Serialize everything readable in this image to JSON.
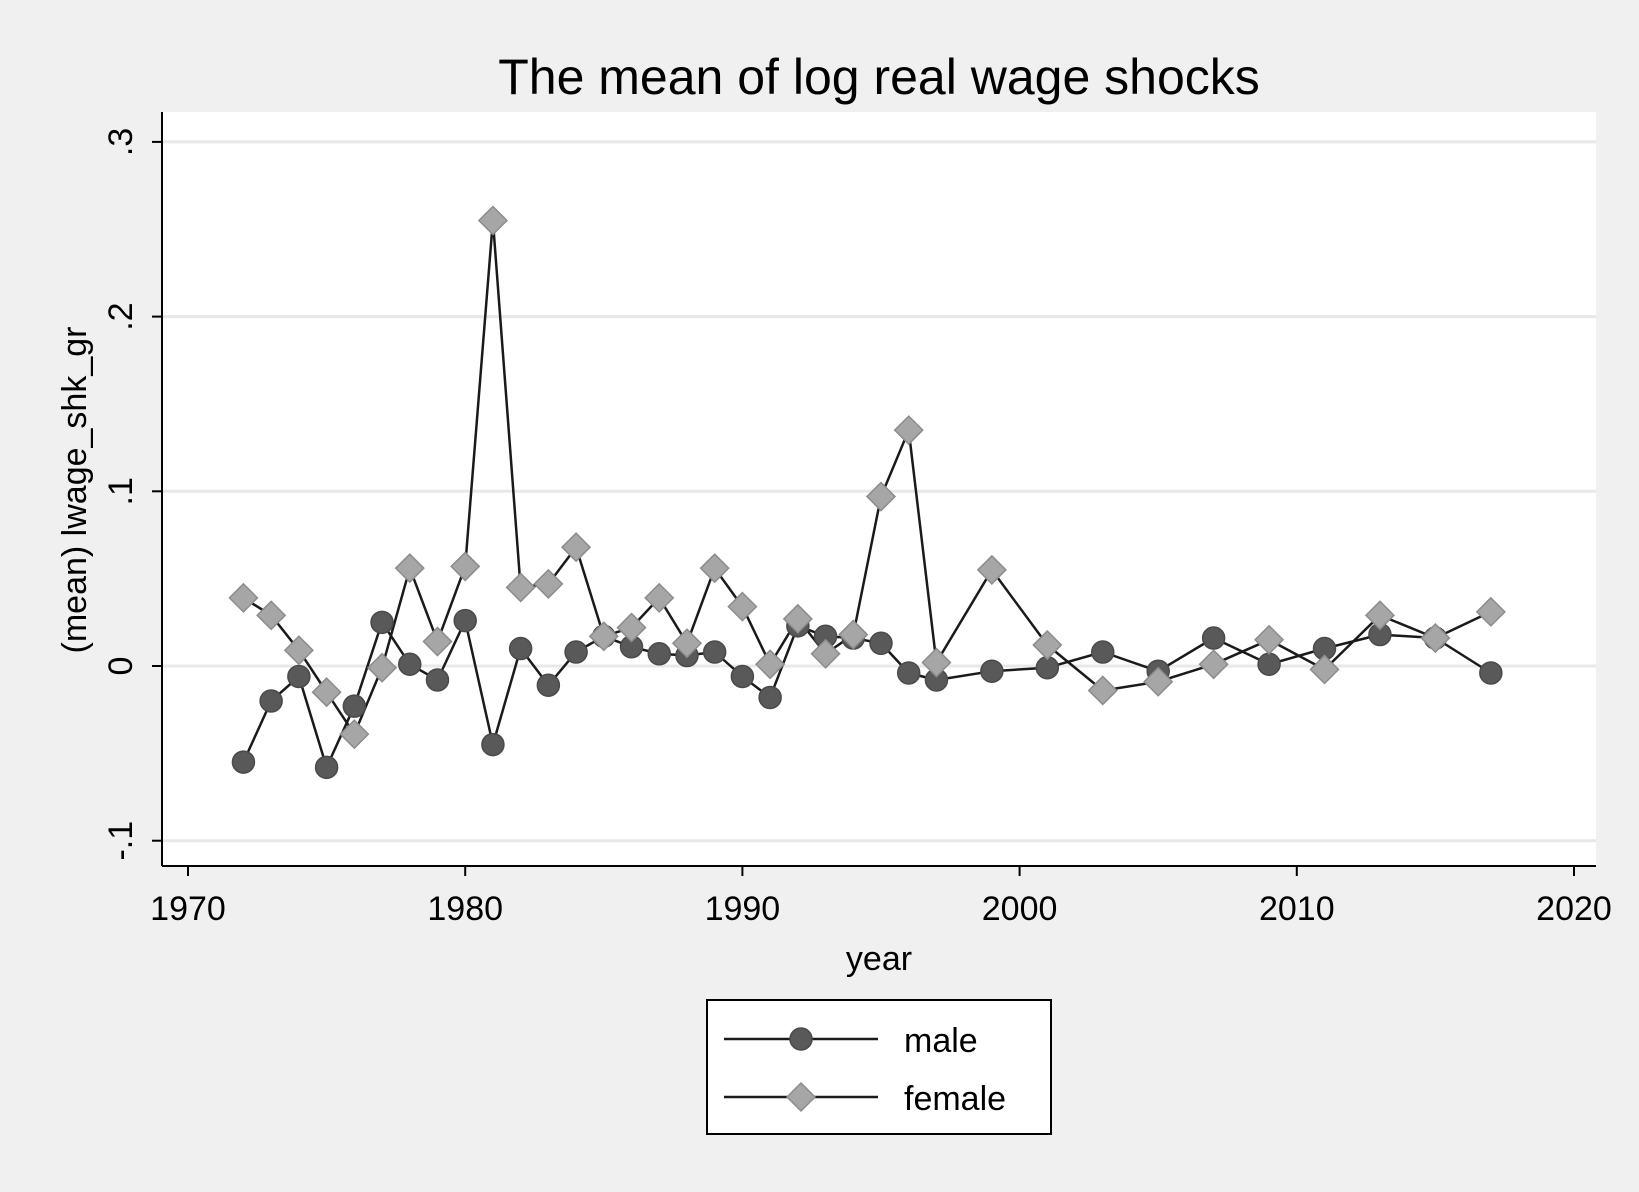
{
  "chart_data": {
    "type": "line",
    "title": "The mean of log real wage shocks",
    "xlabel": "year",
    "ylabel": "(mean) lwage_shk_gr",
    "xlim": [
      1970,
      2020
    ],
    "ylim": [
      -0.1,
      0.3
    ],
    "x_ticks": [
      1970,
      1980,
      1990,
      2000,
      2010,
      2020
    ],
    "x_tick_labels": [
      "1970",
      "1980",
      "1990",
      "2000",
      "2010",
      "2020"
    ],
    "y_ticks": [
      -0.1,
      0,
      0.1,
      0.2,
      0.3
    ],
    "y_tick_labels": [
      "-.1",
      "0",
      ".1",
      ".2",
      ".3"
    ],
    "grid": true,
    "legend_position": "bottom",
    "series": [
      {
        "name": "male",
        "marker": "circle",
        "color": "#595959",
        "x": [
          1972,
          1973,
          1974,
          1975,
          1976,
          1977,
          1978,
          1979,
          1980,
          1981,
          1982,
          1983,
          1984,
          1985,
          1986,
          1987,
          1988,
          1989,
          1990,
          1991,
          1992,
          1993,
          1994,
          1995,
          1996,
          1997,
          1999,
          2001,
          2003,
          2005,
          2007,
          2009,
          2011,
          2013,
          2015,
          2017
        ],
        "y": [
          -0.055,
          -0.02,
          -0.006,
          -0.058,
          -0.023,
          0.025,
          0.001,
          -0.008,
          0.026,
          -0.045,
          0.01,
          -0.011,
          0.008,
          0.017,
          0.011,
          0.007,
          0.006,
          0.008,
          -0.006,
          -0.018,
          0.023,
          0.017,
          0.016,
          0.013,
          -0.004,
          -0.008,
          -0.003,
          -0.001,
          0.008,
          -0.003,
          0.016,
          0.001,
          0.01,
          0.018,
          0.016,
          -0.004
        ]
      },
      {
        "name": "female",
        "marker": "diamond",
        "color": "#a6a6a6",
        "x": [
          1972,
          1973,
          1974,
          1975,
          1976,
          1977,
          1978,
          1979,
          1980,
          1981,
          1982,
          1983,
          1984,
          1985,
          1986,
          1987,
          1988,
          1989,
          1990,
          1991,
          1992,
          1993,
          1994,
          1995,
          1996,
          1997,
          1999,
          2001,
          2003,
          2005,
          2007,
          2009,
          2011,
          2013,
          2015,
          2017
        ],
        "y": [
          0.039,
          0.029,
          0.009,
          -0.015,
          -0.039,
          -0.001,
          0.056,
          0.014,
          0.057,
          0.255,
          0.045,
          0.047,
          0.068,
          0.017,
          0.022,
          0.039,
          0.013,
          0.056,
          0.034,
          0.001,
          0.027,
          0.007,
          0.018,
          0.097,
          0.135,
          0.002,
          0.055,
          0.012,
          -0.014,
          -0.009,
          0.001,
          0.015,
          -0.002,
          0.029,
          0.016,
          0.031
        ]
      }
    ]
  }
}
